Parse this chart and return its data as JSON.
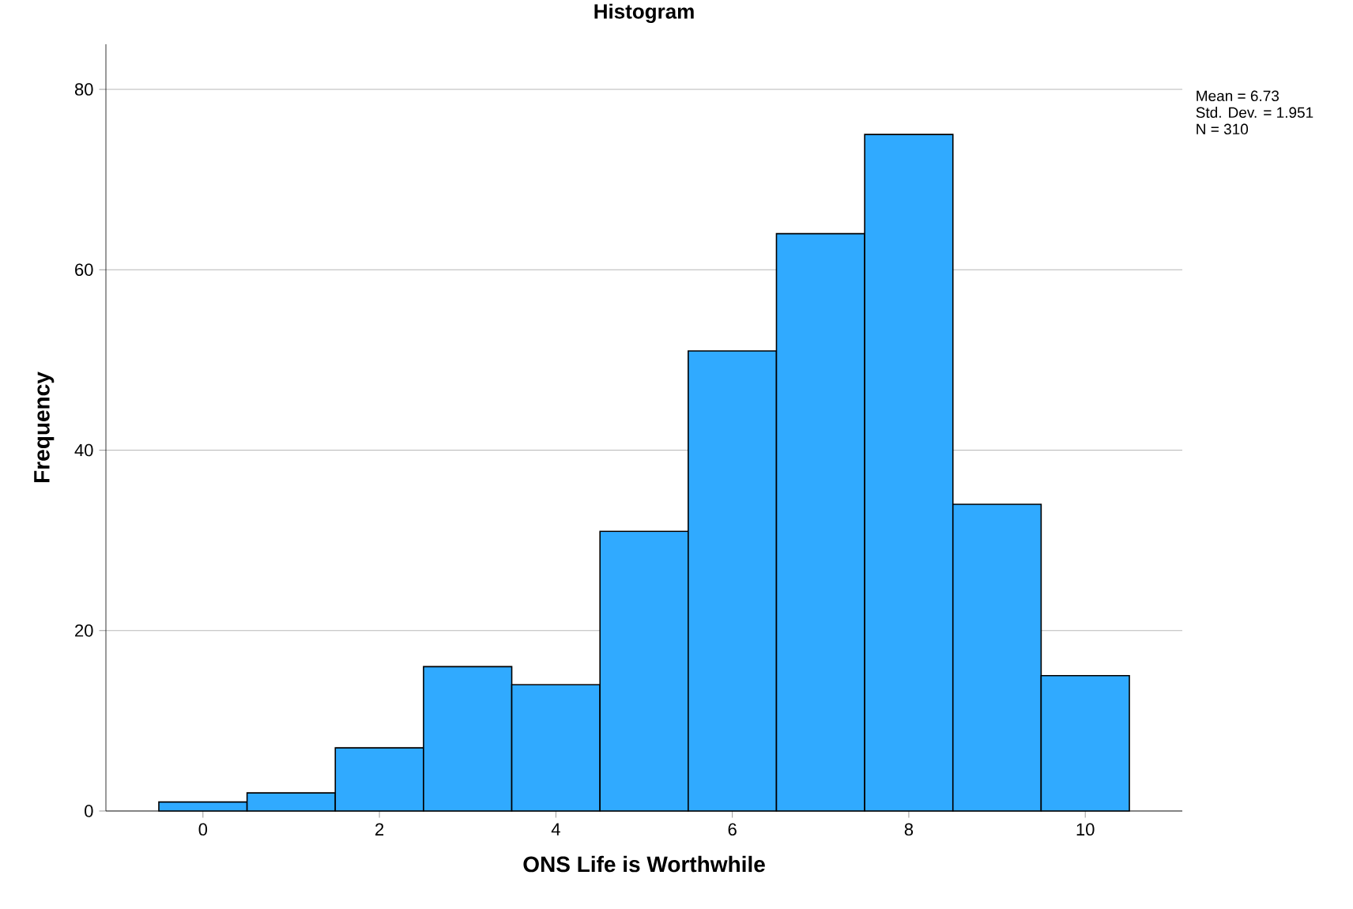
{
  "chart_data": {
    "type": "histogram",
    "title": "Histogram",
    "xlabel": "ONS Life is Worthwhile",
    "ylabel": "Frequency",
    "bins": [
      -0.5,
      0.5,
      1.5,
      2.5,
      3.5,
      4.5,
      5.5,
      6.5,
      7.5,
      8.5,
      9.5,
      10.5
    ],
    "values": [
      1,
      2,
      7,
      16,
      14,
      31,
      51,
      64,
      75,
      34,
      15
    ],
    "color": "#30aaff",
    "xlim": [
      -1.1,
      11.1
    ],
    "ylim": [
      0,
      85
    ],
    "xticks": [
      0,
      2,
      4,
      6,
      8,
      10
    ],
    "yticks": [
      0,
      20,
      40,
      60,
      80
    ],
    "grid": "y",
    "annotations": [
      "Mean = 6.73",
      "Std. Dev. = 1.951",
      "N = 310"
    ]
  }
}
